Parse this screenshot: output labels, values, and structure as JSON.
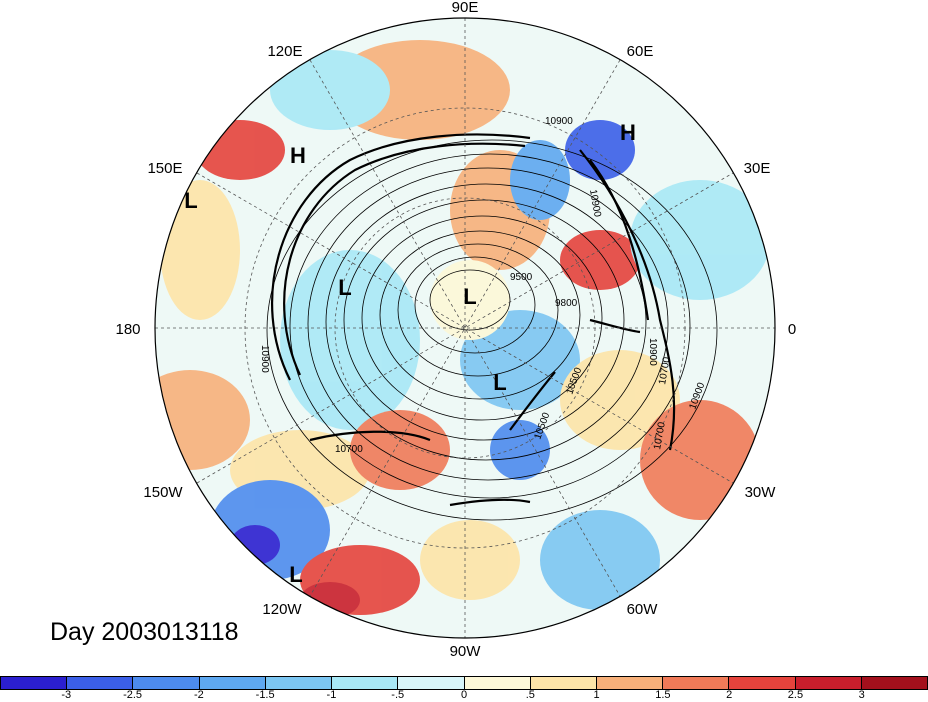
{
  "map": {
    "title": "Day 2003013118",
    "longitude_labels": {
      "top": "90E",
      "top_left": "120E",
      "top_right": "60E",
      "upper_left": "150E",
      "upper_right": "30E",
      "left": "180",
      "right": "0",
      "lower_left": "150W",
      "lower_right": "30W",
      "bottom_left": "120W",
      "bottom_right": "60W",
      "bottom": "90W"
    },
    "pressure_markers": [
      {
        "label": "H"
      },
      {
        "label": "H"
      },
      {
        "label": "L"
      },
      {
        "label": "L"
      },
      {
        "label": "L"
      },
      {
        "label": "L"
      },
      {
        "label": "L"
      }
    ],
    "contour_labels": [
      "10900",
      "10900",
      "10900",
      "10900",
      "10900",
      "10700",
      "10700",
      "10700",
      "10500",
      "10500",
      "9800",
      "9500"
    ]
  },
  "colorbar": {
    "ticks": [
      "-3",
      "-2.5",
      "-2",
      "-1.5",
      "-1",
      "-.5",
      "0",
      ".5",
      "1",
      "1.5",
      "2",
      "2.5",
      "3"
    ],
    "colors": [
      "#2b1fd0",
      "#3b5fe8",
      "#4d8bee",
      "#5ea8f0",
      "#7cc6f2",
      "#a8e8f6",
      "#d8f6fa",
      "#fdf8d8",
      "#fde4a8",
      "#f7b07a",
      "#f07a58",
      "#e5433c",
      "#c81e2c",
      "#a3101c"
    ]
  }
}
